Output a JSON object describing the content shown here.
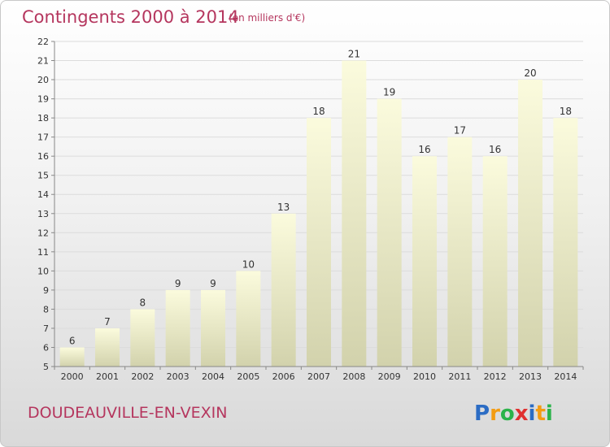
{
  "header": {
    "title": "Contingents 2000 à 2014",
    "subtitle": "(en milliers d'€)"
  },
  "footer": {
    "town": "DOUDEAUVILLE-EN-VEXIN",
    "logo": {
      "letters": [
        "P",
        "r",
        "o",
        "x",
        "i",
        "t",
        "i"
      ],
      "colors": [
        "#2b6cc4",
        "#f39c12",
        "#2bb34a",
        "#e0302f",
        "#2b6cc4",
        "#f39c12",
        "#2bb34a"
      ]
    }
  },
  "chart_data": {
    "type": "bar",
    "categories": [
      "2000",
      "2001",
      "2002",
      "2003",
      "2004",
      "2005",
      "2006",
      "2007",
      "2008",
      "2009",
      "2010",
      "2011",
      "2012",
      "2013",
      "2014"
    ],
    "values": [
      6,
      7,
      8,
      9,
      9,
      10,
      13,
      18,
      21,
      19,
      16,
      17,
      16,
      20,
      18
    ],
    "title": "Contingents 2000 à 2014",
    "ylim": [
      5,
      22
    ],
    "yticks": [
      5,
      6,
      7,
      8,
      9,
      10,
      11,
      12,
      13,
      14,
      15,
      16,
      17,
      18,
      19,
      20,
      21,
      22
    ],
    "grid": true,
    "bar_color": "#f4f4c8"
  }
}
